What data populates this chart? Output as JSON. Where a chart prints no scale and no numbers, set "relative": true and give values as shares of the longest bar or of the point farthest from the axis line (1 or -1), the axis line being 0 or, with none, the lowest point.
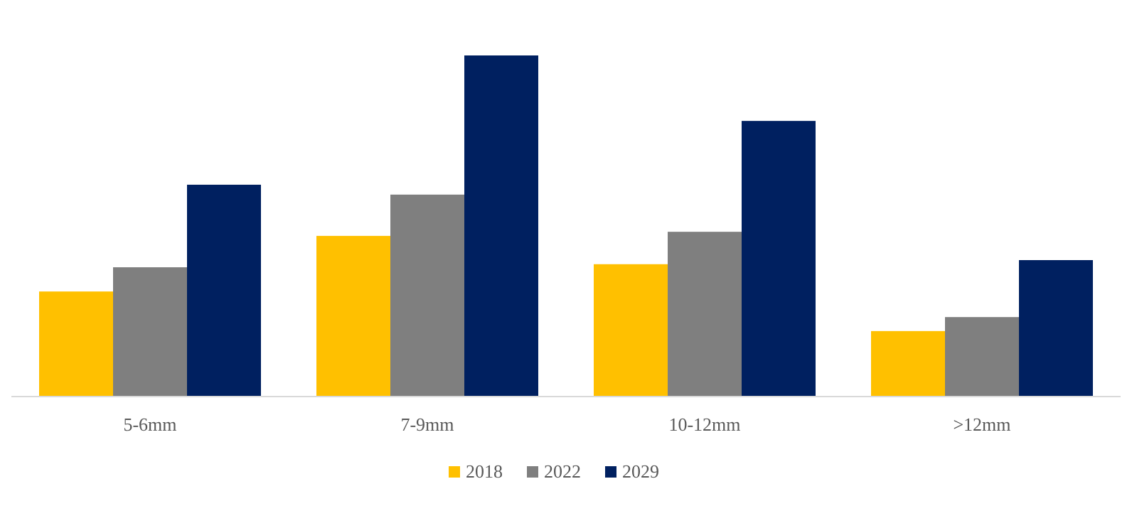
{
  "chart_data": {
    "type": "bar",
    "relative": true,
    "categories": [
      "5-6mm",
      "7-9mm",
      "10-12mm",
      ">12mm"
    ],
    "series": [
      {
        "name": "2018",
        "color": "#ffc000",
        "values": [
          0.308,
          0.471,
          0.388,
          0.192
        ]
      },
      {
        "name": "2022",
        "color": "#7f7f7f",
        "values": [
          0.379,
          0.592,
          0.483,
          0.233
        ]
      },
      {
        "name": "2029",
        "color": "#002060",
        "values": [
          0.621,
          1,
          0.808,
          0.4
        ]
      }
    ],
    "legend": "bottom"
  }
}
